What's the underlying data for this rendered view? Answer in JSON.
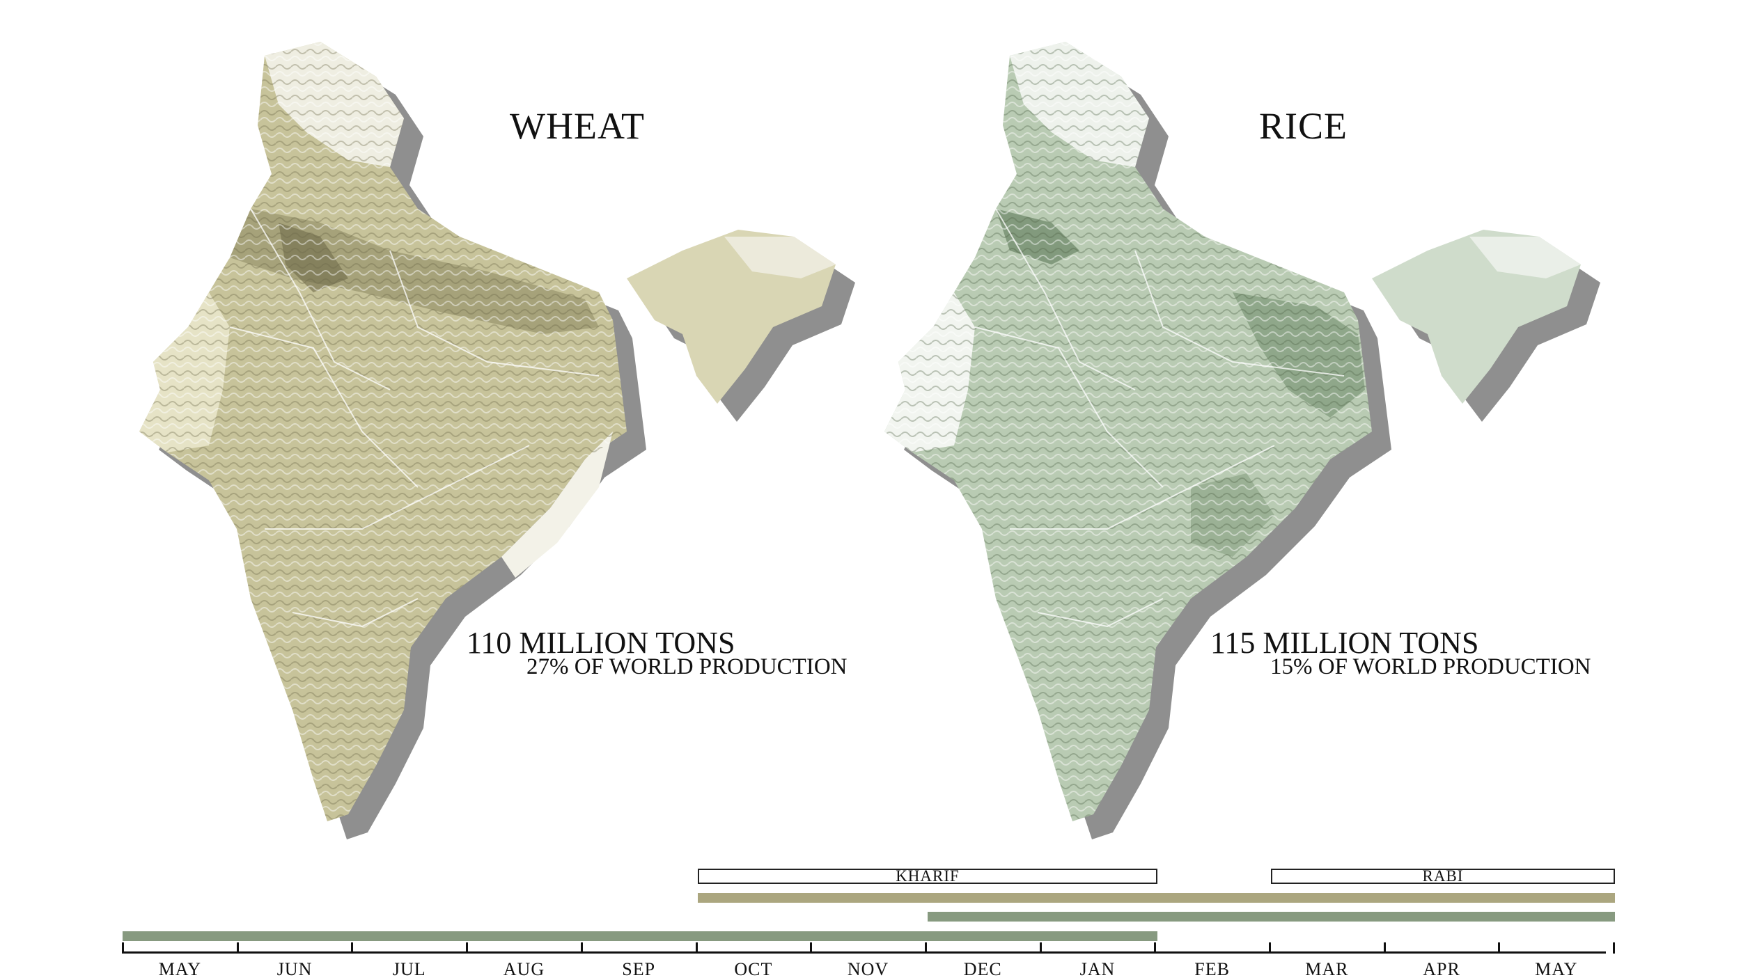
{
  "maps": [
    {
      "title": "WHEAT",
      "production": "110 MILLION TONS",
      "share": "27% OF WORLD PRODUCTION",
      "fill_color": "#c7c39a",
      "dark_color": "#8a8660",
      "light_color": "#e6e3c6"
    },
    {
      "title": "RICE",
      "production": "115 MILLION TONS",
      "share": "15% OF WORLD PRODUCTION",
      "fill_color": "#b9cbb3",
      "dark_color": "#6e8a68",
      "light_color": "#e2ebdf"
    }
  ],
  "seasons": [
    {
      "label": "KHARIF"
    },
    {
      "label": "RABI"
    }
  ],
  "timeline": {
    "months": [
      "MAY",
      "JUN",
      "JUL",
      "AUG",
      "SEP",
      "OCT",
      "NOV",
      "DEC",
      "JAN",
      "FEB",
      "MAR",
      "APR",
      "MAY"
    ],
    "bars": [
      {
        "crop": "wheat",
        "color": "#aba67f"
      },
      {
        "crop": "rice",
        "color": "#879a80"
      },
      {
        "crop": "rice",
        "color": "#879a80"
      }
    ]
  }
}
